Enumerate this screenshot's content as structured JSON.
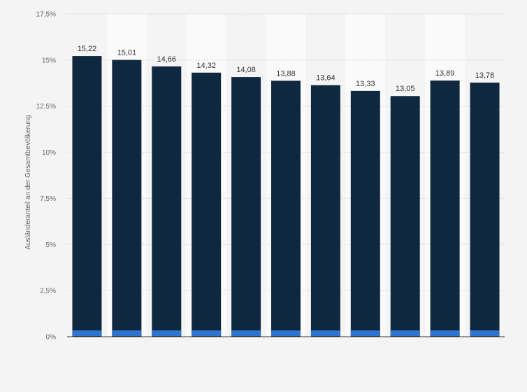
{
  "chart_data": {
    "type": "bar",
    "categories": [
      "",
      "",
      "",
      "",
      "",
      "",
      "",
      "",
      "",
      "",
      ""
    ],
    "values": [
      15.22,
      15.01,
      14.66,
      14.32,
      14.08,
      13.88,
      13.64,
      13.33,
      13.05,
      13.89,
      13.78
    ],
    "value_labels": [
      "15,22",
      "15,01",
      "14,66",
      "14,32",
      "14,08",
      "13,88",
      "13,64",
      "13,33",
      "13,05",
      "13,89",
      "13,78"
    ],
    "ylabel": "Ausländeranteil an der Gesamtbevölkerung",
    "ylim": [
      0,
      17.5
    ],
    "yticks": [
      0,
      2.5,
      5,
      7.5,
      10,
      12.5,
      15,
      17.5
    ],
    "ytick_labels": [
      "0%",
      "2,5%",
      "5%",
      "7,5%",
      "10%",
      "12,5%",
      "15%",
      "17,5%"
    ],
    "grid": true,
    "colors": {
      "bar": "#0f2840",
      "bar_base": "#2f74d0",
      "band": "#fafafa",
      "grid": "#d6d6d6",
      "background": "#f4f4f4"
    }
  }
}
